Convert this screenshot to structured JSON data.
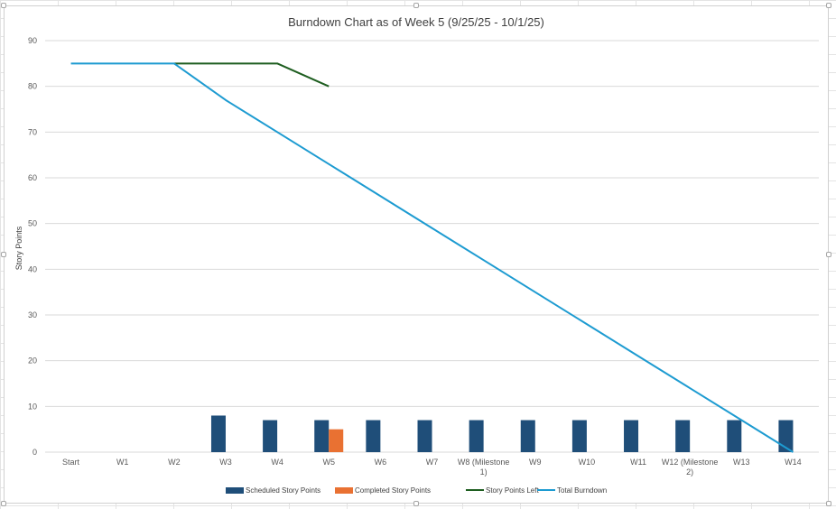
{
  "chart_data": {
    "type": "bar",
    "title": "Burndown Chart as of Week 5 (9/25/25 - 10/1/25)",
    "xlabel": "",
    "ylabel": "Story Points",
    "ylim": [
      0,
      90
    ],
    "y_ticks": [
      0,
      10,
      20,
      30,
      40,
      50,
      60,
      70,
      80,
      90
    ],
    "grid": true,
    "legend_position": "bottom",
    "categories": [
      "Start",
      "W1",
      "W2",
      "W3",
      "W4",
      "W5",
      "W6",
      "W7",
      "W8 (Milestone 1)",
      "W9",
      "W10",
      "W11",
      "W12 (Milestone 2)",
      "W13",
      "W14"
    ],
    "category_labels": [
      [
        "Start"
      ],
      [
        "W1"
      ],
      [
        "W2"
      ],
      [
        "W3"
      ],
      [
        "W4"
      ],
      [
        "W5"
      ],
      [
        "W6"
      ],
      [
        "W7"
      ],
      [
        "W8 (Milestone",
        "1)"
      ],
      [
        "W9"
      ],
      [
        "W10"
      ],
      [
        "W11"
      ],
      [
        "W12 (Milestone",
        "2)"
      ],
      [
        "W13"
      ],
      [
        "W14"
      ]
    ],
    "series": [
      {
        "name": "Scheduled Story Points",
        "type": "bar",
        "color": "#1f4e79",
        "values": [
          null,
          null,
          null,
          8,
          7,
          7,
          7,
          7,
          7,
          7,
          7,
          7,
          7,
          7,
          7
        ]
      },
      {
        "name": "Completed Story Points",
        "type": "bar",
        "color": "#e97132",
        "values": [
          null,
          null,
          null,
          null,
          null,
          5,
          null,
          null,
          null,
          null,
          null,
          null,
          null,
          null,
          null
        ]
      },
      {
        "name": "Story Points  Left",
        "type": "line",
        "color": "#1e5e20",
        "values": [
          null,
          null,
          85,
          85,
          85,
          80,
          null,
          null,
          null,
          null,
          null,
          null,
          null,
          null,
          null
        ]
      },
      {
        "name": "Total Burndown",
        "type": "line",
        "color": "#1d9bd1",
        "values": [
          85,
          85,
          85,
          77,
          70,
          63,
          56,
          49,
          42,
          35,
          28,
          21,
          14,
          7,
          0
        ]
      }
    ]
  }
}
